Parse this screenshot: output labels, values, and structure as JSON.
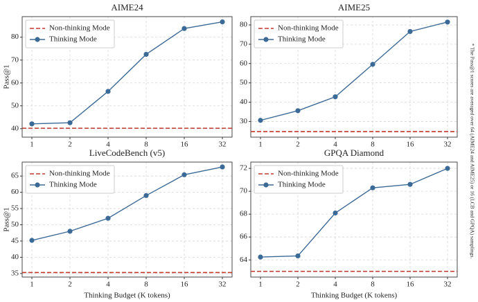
{
  "chart_data": [
    {
      "type": "line",
      "title": "AIME24",
      "y_label": "Pass@1",
      "categories": [
        "1",
        "2",
        "4",
        "8",
        "16",
        "32"
      ],
      "reference_line": {
        "name": "Non-thinking Mode",
        "color": "#c0392b",
        "value": 40.2
      },
      "series": [
        {
          "name": "Thinking Mode",
          "color": "#3b6a96",
          "values": [
            42.1,
            42.6,
            56.3,
            72.5,
            83.8,
            86.7
          ]
        }
      ],
      "ylim": [
        36.3,
        89
      ],
      "yticks": [
        40,
        50,
        60,
        70,
        80
      ],
      "grid": true,
      "legend": "upper left"
    },
    {
      "type": "line",
      "title": "AIME25",
      "categories": [
        "1",
        "2",
        "4",
        "8",
        "16",
        "32"
      ],
      "reference_line": {
        "name": "Non-thinking Mode",
        "color": "#c0392b",
        "value": 24.8
      },
      "series": [
        {
          "name": "Thinking Mode",
          "color": "#3b6a96",
          "values": [
            30.6,
            35.6,
            42.8,
            59.6,
            76.6,
            81.5
          ]
        }
      ],
      "ylim": [
        21.9,
        84.3
      ],
      "yticks": [
        30,
        40,
        50,
        60,
        70,
        80
      ],
      "grid": true,
      "legend": "upper left"
    },
    {
      "type": "line",
      "title": "LiveCodeBench (v5)",
      "x_label": "Thinking Budget (K tokens)",
      "y_label": "Pass@1",
      "categories": [
        "1",
        "2",
        "4",
        "8",
        "16",
        "32"
      ],
      "reference_line": {
        "name": "Non-thinking Mode",
        "color": "#c0392b",
        "value": 35.3
      },
      "series": [
        {
          "name": "Thinking Mode",
          "color": "#3b6a96",
          "values": [
            45.2,
            48.0,
            52.0,
            59.0,
            65.4,
            67.8
          ]
        }
      ],
      "ylim": [
        33.9,
        69.3
      ],
      "yticks": [
        35,
        40,
        45,
        50,
        55,
        60,
        65
      ],
      "grid": true,
      "legend": "upper left"
    },
    {
      "type": "line",
      "title": "GPQA Diamond",
      "x_label": "Thinking Budget (K tokens)",
      "categories": [
        "1",
        "2",
        "4",
        "8",
        "16",
        "32"
      ],
      "reference_line": {
        "name": "Non-thinking Mode",
        "color": "#c0392b",
        "value": 63.0
      },
      "series": [
        {
          "name": "Thinking Mode",
          "color": "#3b6a96",
          "values": [
            64.25,
            64.35,
            68.1,
            70.3,
            70.6,
            72.0
          ]
        }
      ],
      "ylim": [
        62.5,
        72.55
      ],
      "yticks": [
        64,
        66,
        68,
        70,
        72
      ],
      "grid": true,
      "legend": "upper left"
    }
  ],
  "note": "* The Pass@1 scores are averaged over 64 (AIME24 and AIME25) or 16 (LCB and GPQA) samplings."
}
